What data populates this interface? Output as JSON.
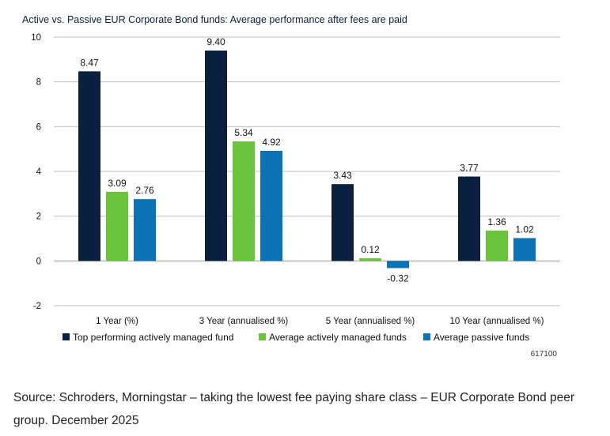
{
  "chart_data": {
    "type": "bar",
    "title": "Active vs. Passive EUR Corporate Bond funds: Average performance after fees are paid",
    "categories": [
      "1 Year (%)",
      "3 Year (annualised %)",
      "5 Year (annualised %)",
      "10 Year (annualised %)"
    ],
    "series": [
      {
        "name": "Top performing actively managed fund",
        "color": "#0b1f3f",
        "values": [
          8.47,
          9.4,
          3.43,
          3.77
        ],
        "labels": [
          "8.47",
          "9.40",
          "3.43",
          "3.77"
        ]
      },
      {
        "name": "Average actively managed funds",
        "color": "#6cc43c",
        "values": [
          3.09,
          5.34,
          0.12,
          1.36
        ],
        "labels": [
          "3.09",
          "5.34",
          "0.12",
          "1.36"
        ]
      },
      {
        "name": "Average passive funds",
        "color": "#0a72b5",
        "values": [
          2.76,
          4.92,
          -0.32,
          1.02
        ],
        "labels": [
          "2.76",
          "4.92",
          "-0.32",
          "1.02"
        ]
      }
    ],
    "ylim": [
      -2,
      10
    ],
    "yticks": [
      -2,
      0,
      2,
      4,
      6,
      8,
      10
    ],
    "xlabel": "",
    "ylabel": "",
    "grid": true,
    "legend_position": "bottom",
    "code": "617100"
  },
  "source": "Source: Schroders, Morningstar – taking the lowest fee paying share class – EUR Corporate Bond peer group. December 2025"
}
